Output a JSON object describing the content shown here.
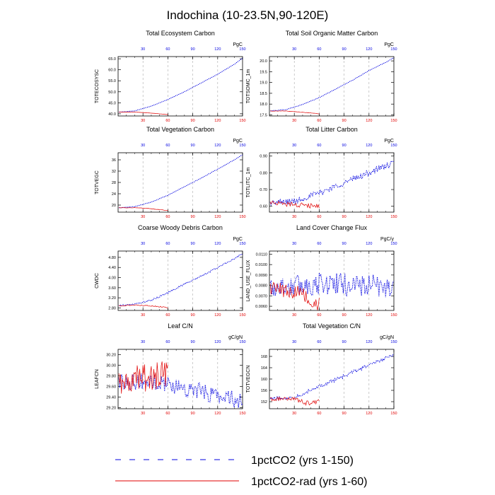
{
  "title": "Indochina (10-23.5N,90-120E)",
  "colors": {
    "series_150": "#0000e0",
    "series_60": "#e00000",
    "grid": "#aaaaaa"
  },
  "legend": {
    "items": [
      {
        "label": "1pctCO2 (yrs 1-150)",
        "color": "#0000e0",
        "style": "dashed"
      },
      {
        "label": "1pctCO2-rad (yrs 1-60)",
        "color": "#e00000",
        "style": "solid"
      }
    ]
  },
  "chart_data": [
    {
      "type": "line",
      "title": "Total Ecosystem Carbon",
      "ylabel": "TOTECOSYSC",
      "unit": "PgC",
      "xlim": [
        0,
        150
      ],
      "xticks": [
        30,
        60,
        90,
        120,
        150
      ],
      "ylim": [
        39,
        66
      ],
      "yticks": [
        40.0,
        45.0,
        50.0,
        55.0,
        60.0,
        65.0
      ],
      "ytick_labels": [
        "40.0",
        "45.0",
        "50.0",
        "55.0",
        "60.0",
        "65.0"
      ],
      "series": [
        {
          "name": "1pctCO2 (yrs 1-150)",
          "x_end": 150,
          "points": [
            [
              0,
              40.7
            ],
            [
              20,
              41.3
            ],
            [
              40,
              43.5
            ],
            [
              60,
              46.5
            ],
            [
              80,
              50.0
            ],
            [
              100,
              54.0
            ],
            [
              120,
              58.0
            ],
            [
              140,
              62.5
            ],
            [
              150,
              65.3
            ]
          ],
          "noise": 0.05
        },
        {
          "name": "1pctCO2-rad (yrs 1-60)",
          "x_end": 60,
          "points": [
            [
              0,
              40.7
            ],
            [
              20,
              40.8
            ],
            [
              40,
              40.3
            ],
            [
              60,
              39.6
            ]
          ],
          "noise": 0.05
        }
      ]
    },
    {
      "type": "line",
      "title": "Total Soil Organic Matter Carbon",
      "ylabel": "TOTSOMC_1m",
      "unit": "PgC",
      "xlim": [
        0,
        150
      ],
      "xticks": [
        30,
        60,
        90,
        120,
        150
      ],
      "ylim": [
        17.45,
        20.2
      ],
      "yticks": [
        17.5,
        18.0,
        18.5,
        19.0,
        19.5,
        20.0
      ],
      "ytick_labels": [
        "17.5",
        "18.0",
        "18.5",
        "19.0",
        "19.5",
        "20.0"
      ],
      "series": [
        {
          "name": "1pctCO2 (yrs 1-150)",
          "x_end": 150,
          "points": [
            [
              0,
              17.68
            ],
            [
              20,
              17.75
            ],
            [
              40,
              17.98
            ],
            [
              60,
              18.3
            ],
            [
              80,
              18.7
            ],
            [
              100,
              19.1
            ],
            [
              120,
              19.55
            ],
            [
              140,
              19.93
            ],
            [
              150,
              20.15
            ]
          ],
          "noise": 0.01
        },
        {
          "name": "1pctCO2-rad (yrs 1-60)",
          "x_end": 60,
          "points": [
            [
              0,
              17.68
            ],
            [
              20,
              17.68
            ],
            [
              40,
              17.62
            ],
            [
              60,
              17.55
            ]
          ],
          "noise": 0.01
        }
      ]
    },
    {
      "type": "line",
      "title": "Total Vegetation Carbon",
      "ylabel": "TOTVEGC",
      "unit": "PgC",
      "xlim": [
        0,
        150
      ],
      "xticks": [
        30,
        60,
        90,
        120,
        150
      ],
      "ylim": [
        17.5,
        38.5
      ],
      "yticks": [
        20,
        24,
        28,
        32,
        36
      ],
      "ytick_labels": [
        "20",
        "24",
        "28",
        "32",
        "36"
      ],
      "series": [
        {
          "name": "1pctCO2 (yrs 1-150)",
          "x_end": 150,
          "points": [
            [
              0,
              19.0
            ],
            [
              20,
              19.5
            ],
            [
              40,
              21.0
            ],
            [
              60,
              23.5
            ],
            [
              80,
              26.5
            ],
            [
              100,
              29.5
            ],
            [
              120,
              32.7
            ],
            [
              140,
              36.0
            ],
            [
              150,
              37.8
            ]
          ],
          "noise": 0.08
        },
        {
          "name": "1pctCO2-rad (yrs 1-60)",
          "x_end": 60,
          "points": [
            [
              0,
              19.0
            ],
            [
              20,
              19.1
            ],
            [
              40,
              18.7
            ],
            [
              60,
              18.1
            ]
          ],
          "noise": 0.08
        }
      ]
    },
    {
      "type": "line",
      "title": "Total Litter Carbon",
      "ylabel": "TOTLITC_1m",
      "unit": "PgC",
      "xlim": [
        0,
        150
      ],
      "xticks": [
        30,
        60,
        90,
        120,
        150
      ],
      "ylim": [
        0.565,
        0.92
      ],
      "yticks": [
        0.6,
        0.7,
        0.8,
        0.9
      ],
      "ytick_labels": [
        "0.60",
        "0.70",
        "0.80",
        "0.90"
      ],
      "series": [
        {
          "name": "1pctCO2 (yrs 1-150)",
          "x_end": 150,
          "points": [
            [
              0,
              0.62
            ],
            [
              30,
              0.63
            ],
            [
              60,
              0.68
            ],
            [
              90,
              0.74
            ],
            [
              120,
              0.8
            ],
            [
              150,
              0.86
            ]
          ],
          "noise": 0.018
        },
        {
          "name": "1pctCO2-rad (yrs 1-60)",
          "x_end": 60,
          "points": [
            [
              0,
              0.62
            ],
            [
              30,
              0.61
            ],
            [
              60,
              0.6
            ]
          ],
          "noise": 0.015
        }
      ]
    },
    {
      "type": "line",
      "title": "Coarse Woody Debris Carbon",
      "ylabel": "CWDC",
      "unit": "PgC",
      "xlim": [
        0,
        150
      ],
      "xticks": [
        30,
        60,
        90,
        120,
        150
      ],
      "ylim": [
        2.7,
        5.05
      ],
      "yticks": [
        2.8,
        3.2,
        3.6,
        4.0,
        4.4,
        4.8
      ],
      "ytick_labels": [
        "2.80",
        "3.20",
        "3.60",
        "4.00",
        "4.40",
        "4.80"
      ],
      "series": [
        {
          "name": "1pctCO2 (yrs 1-150)",
          "x_end": 150,
          "points": [
            [
              0,
              2.88
            ],
            [
              20,
              2.95
            ],
            [
              40,
              3.1
            ],
            [
              60,
              3.4
            ],
            [
              80,
              3.75
            ],
            [
              100,
              4.05
            ],
            [
              120,
              4.4
            ],
            [
              140,
              4.75
            ],
            [
              150,
              4.95
            ]
          ],
          "noise": 0.03
        },
        {
          "name": "1pctCO2-rad (yrs 1-60)",
          "x_end": 60,
          "points": [
            [
              0,
              2.88
            ],
            [
              20,
              2.92
            ],
            [
              40,
              2.88
            ],
            [
              60,
              2.82
            ]
          ],
          "noise": 0.02
        }
      ]
    },
    {
      "type": "line",
      "title": "Land Cover Change Flux",
      "ylabel": "LAND_USE_FLUX",
      "unit": "PgC/y",
      "xlim": [
        0,
        150
      ],
      "xticks": [
        30,
        60,
        90,
        120,
        150
      ],
      "ylim": [
        0.0056,
        0.0113
      ],
      "yticks": [
        0.006,
        0.007,
        0.008,
        0.009,
        0.01,
        0.011
      ],
      "ytick_labels": [
        "0.0060",
        "0.0070",
        "0.0080",
        "0.0090",
        "0.0100",
        "0.0110"
      ],
      "series": [
        {
          "name": "1pctCO2 (yrs 1-150)",
          "x_end": 150,
          "points": [
            [
              0,
              0.0078
            ],
            [
              75,
              0.0082
            ],
            [
              150,
              0.0078
            ]
          ],
          "noise": 0.0011
        },
        {
          "name": "1pctCO2-rad (yrs 1-60)",
          "x_end": 60,
          "points": [
            [
              0,
              0.0078
            ],
            [
              40,
              0.0072
            ],
            [
              60,
              0.0062
            ]
          ],
          "noise": 0.0007
        }
      ]
    },
    {
      "type": "line",
      "title": "Leaf C/N",
      "ylabel": "LEAFCN",
      "unit": "gC/gN",
      "xlim": [
        0,
        150
      ],
      "xticks": [
        30,
        60,
        90,
        120,
        150
      ],
      "ylim": [
        29.18,
        30.3
      ],
      "yticks": [
        29.2,
        29.4,
        29.6,
        29.8,
        30.0,
        30.2
      ],
      "ytick_labels": [
        "29.20",
        "29.40",
        "29.60",
        "29.80",
        "30.00",
        "30.20"
      ],
      "series": [
        {
          "name": "1pctCO2 (yrs 1-150)",
          "x_end": 150,
          "points": [
            [
              0,
              29.7
            ],
            [
              50,
              29.68
            ],
            [
              100,
              29.5
            ],
            [
              150,
              29.33
            ]
          ],
          "noise": 0.16
        },
        {
          "name": "1pctCO2-rad (yrs 1-60)",
          "x_end": 60,
          "points": [
            [
              0,
              29.7
            ],
            [
              30,
              29.75
            ],
            [
              60,
              29.85
            ]
          ],
          "noise": 0.26
        }
      ]
    },
    {
      "type": "line",
      "title": "Total Vegetation C/N",
      "ylabel": "TOTVEGCN",
      "unit": "gC/gN",
      "xlim": [
        0,
        150
      ],
      "xticks": [
        30,
        60,
        90,
        120,
        150
      ],
      "ylim": [
        149.5,
        170.5
      ],
      "yticks": [
        152,
        156,
        160,
        164,
        168
      ],
      "ytick_labels": [
        "152",
        "156",
        "160",
        "164",
        "168"
      ],
      "series": [
        {
          "name": "1pctCO2 (yrs 1-150)",
          "x_end": 150,
          "points": [
            [
              0,
              153
            ],
            [
              30,
              153.5
            ],
            [
              60,
              157.5
            ],
            [
              90,
              161
            ],
            [
              120,
              165
            ],
            [
              150,
              168.5
            ]
          ],
          "noise": 0.6
        },
        {
          "name": "1pctCO2-rad (yrs 1-60)",
          "x_end": 60,
          "points": [
            [
              0,
              153
            ],
            [
              30,
              153
            ],
            [
              45,
              151.5
            ],
            [
              60,
              152
            ]
          ],
          "noise": 0.8
        }
      ]
    }
  ]
}
